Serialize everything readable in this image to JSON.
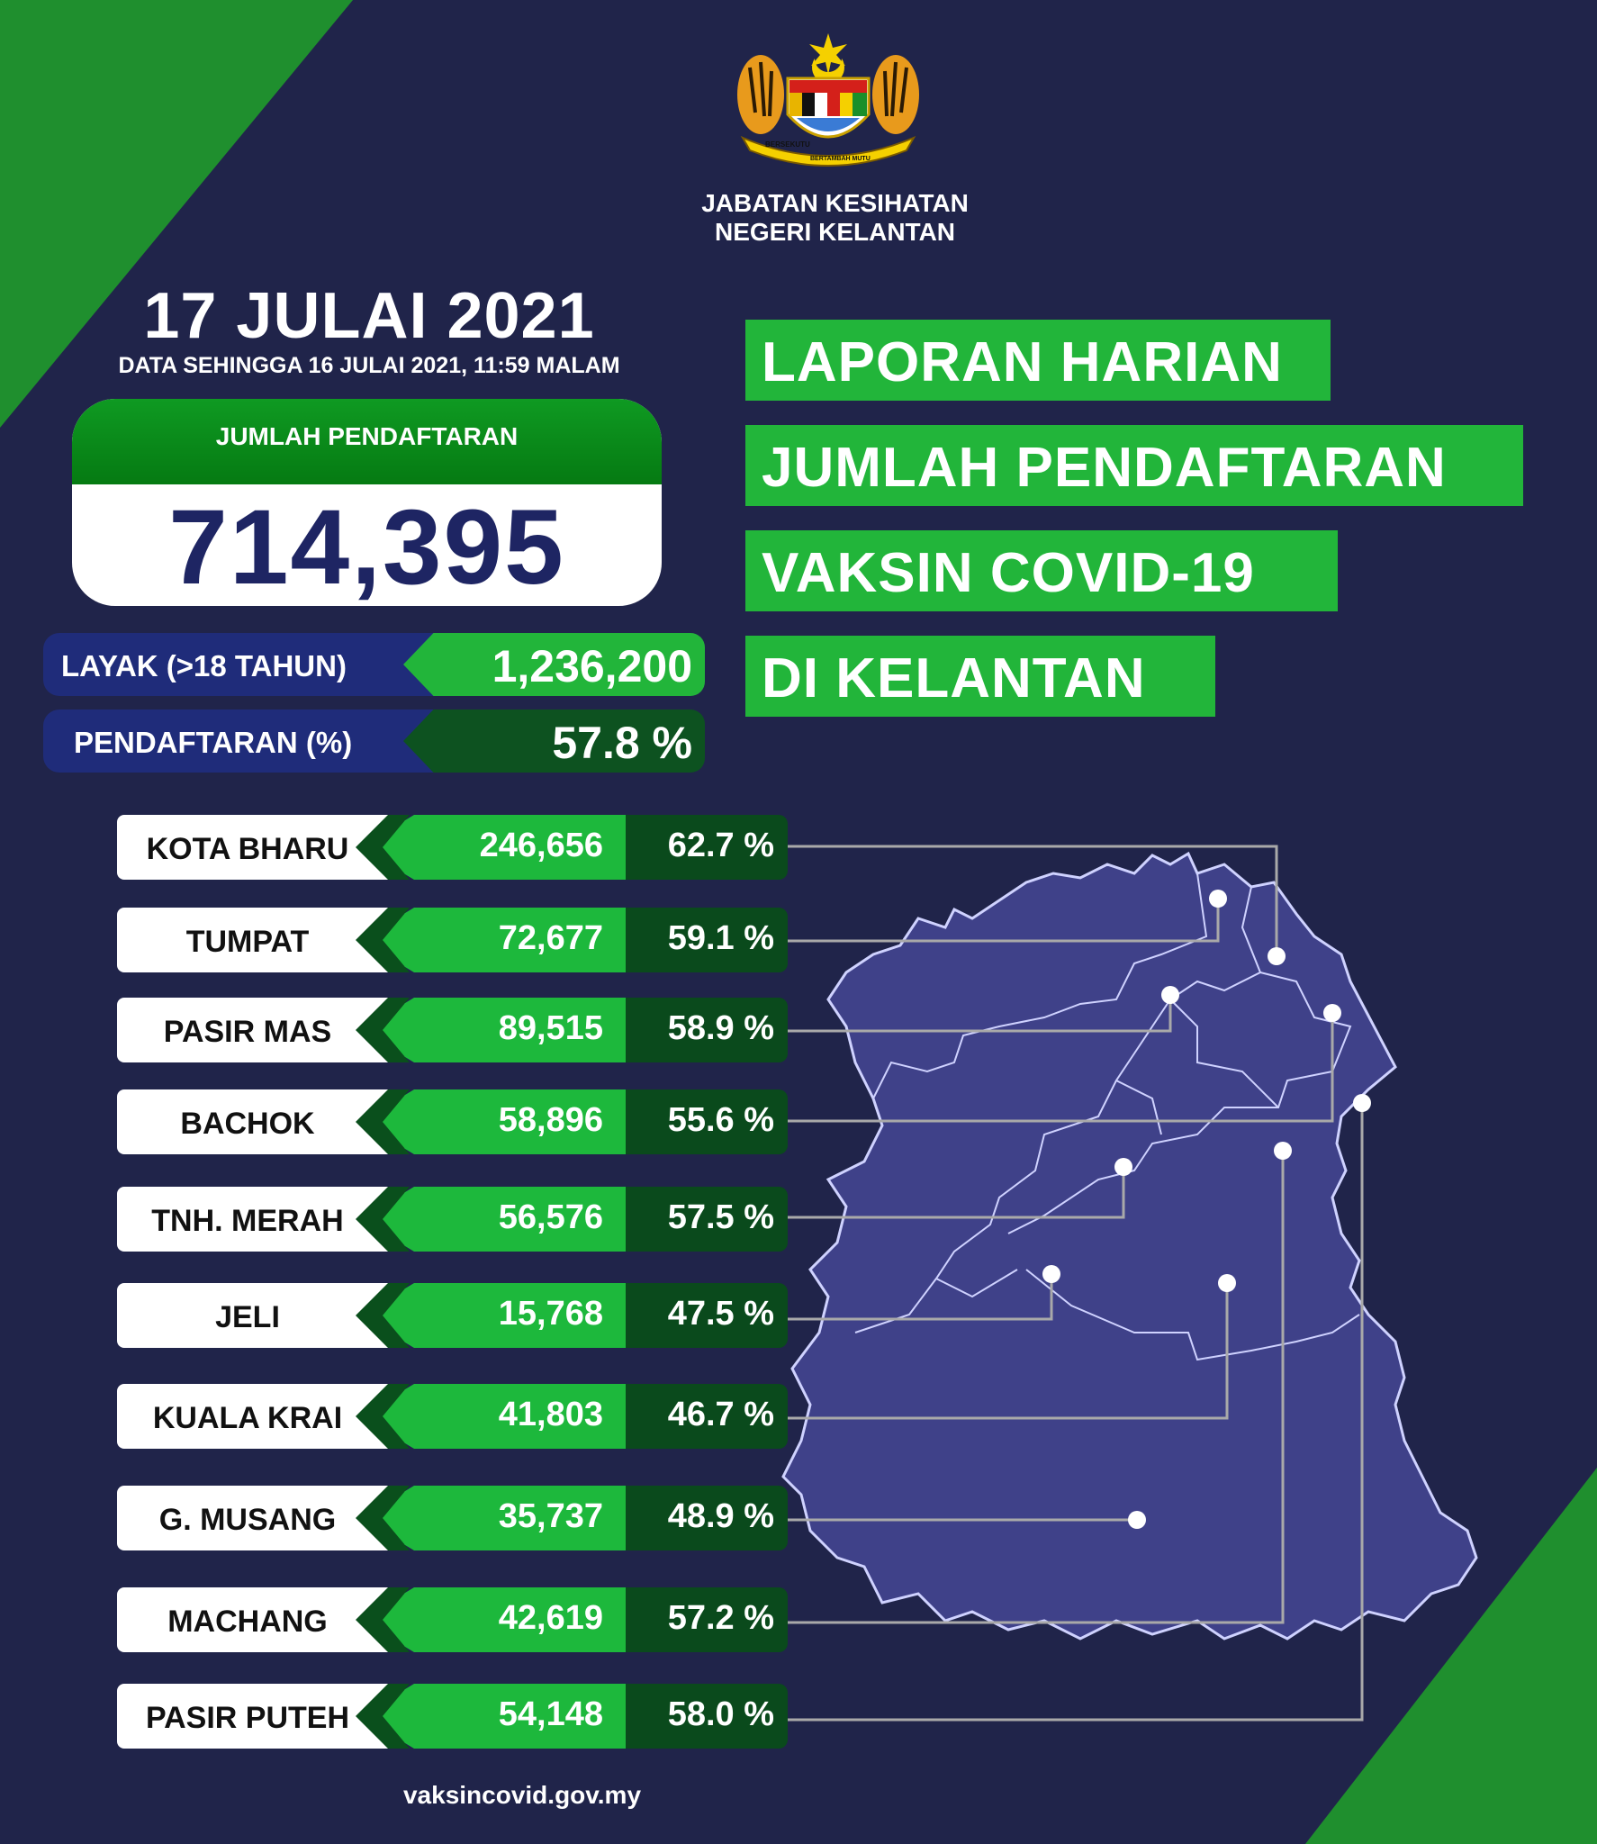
{
  "org": {
    "line1": "JABATAN KESIHATAN",
    "line2": "NEGERI KELANTAN"
  },
  "crest": {
    "motto_left": "BERSEKUTU",
    "motto_bottom": "BERTAMBAH MUTU"
  },
  "date": "17 JULAI 2021",
  "data_note": "DATA SEHINGGA 16 JULAI  2021, 11:59 MALAM",
  "total": {
    "label": "JUMLAH PENDAFTARAN",
    "value": "714,395"
  },
  "eligible": {
    "label": "LAYAK (>18 TAHUN)",
    "value": "1,236,200"
  },
  "registration_pct": {
    "label": "PENDAFTARAN (%)",
    "value": "57.8 %"
  },
  "headline": [
    "LAPORAN HARIAN",
    "JUMLAH PENDAFTARAN",
    "VAKSIN COVID-19",
    "DI KELANTAN"
  ],
  "districts": [
    {
      "name": "KOTA BHARU",
      "count": "246,656",
      "pct": "62.7 %"
    },
    {
      "name": "TUMPAT",
      "count": "72,677",
      "pct": "59.1 %"
    },
    {
      "name": "PASIR MAS",
      "count": "89,515",
      "pct": "58.9 %"
    },
    {
      "name": "BACHOK",
      "count": "58,896",
      "pct": "55.6 %"
    },
    {
      "name": "TNH. MERAH",
      "count": "56,576",
      "pct": "57.5 %"
    },
    {
      "name": "JELI",
      "count": "15,768",
      "pct": "47.5 %"
    },
    {
      "name": "KUALA KRAI",
      "count": "41,803",
      "pct": "46.7 %"
    },
    {
      "name": "G. MUSANG",
      "count": "35,737",
      "pct": "48.9 %"
    },
    {
      "name": "MACHANG",
      "count": "42,619",
      "pct": "57.2 %"
    },
    {
      "name": "PASIR PUTEH",
      "count": "54,148",
      "pct": "58.0 %"
    }
  ],
  "footer": "vaksincovid.gov.my",
  "colors": {
    "background": "#20244a",
    "green": "#1db83c",
    "dark_green": "#0a4a1c",
    "navy": "#1f2c7a",
    "map_fill": "#3f4189"
  }
}
